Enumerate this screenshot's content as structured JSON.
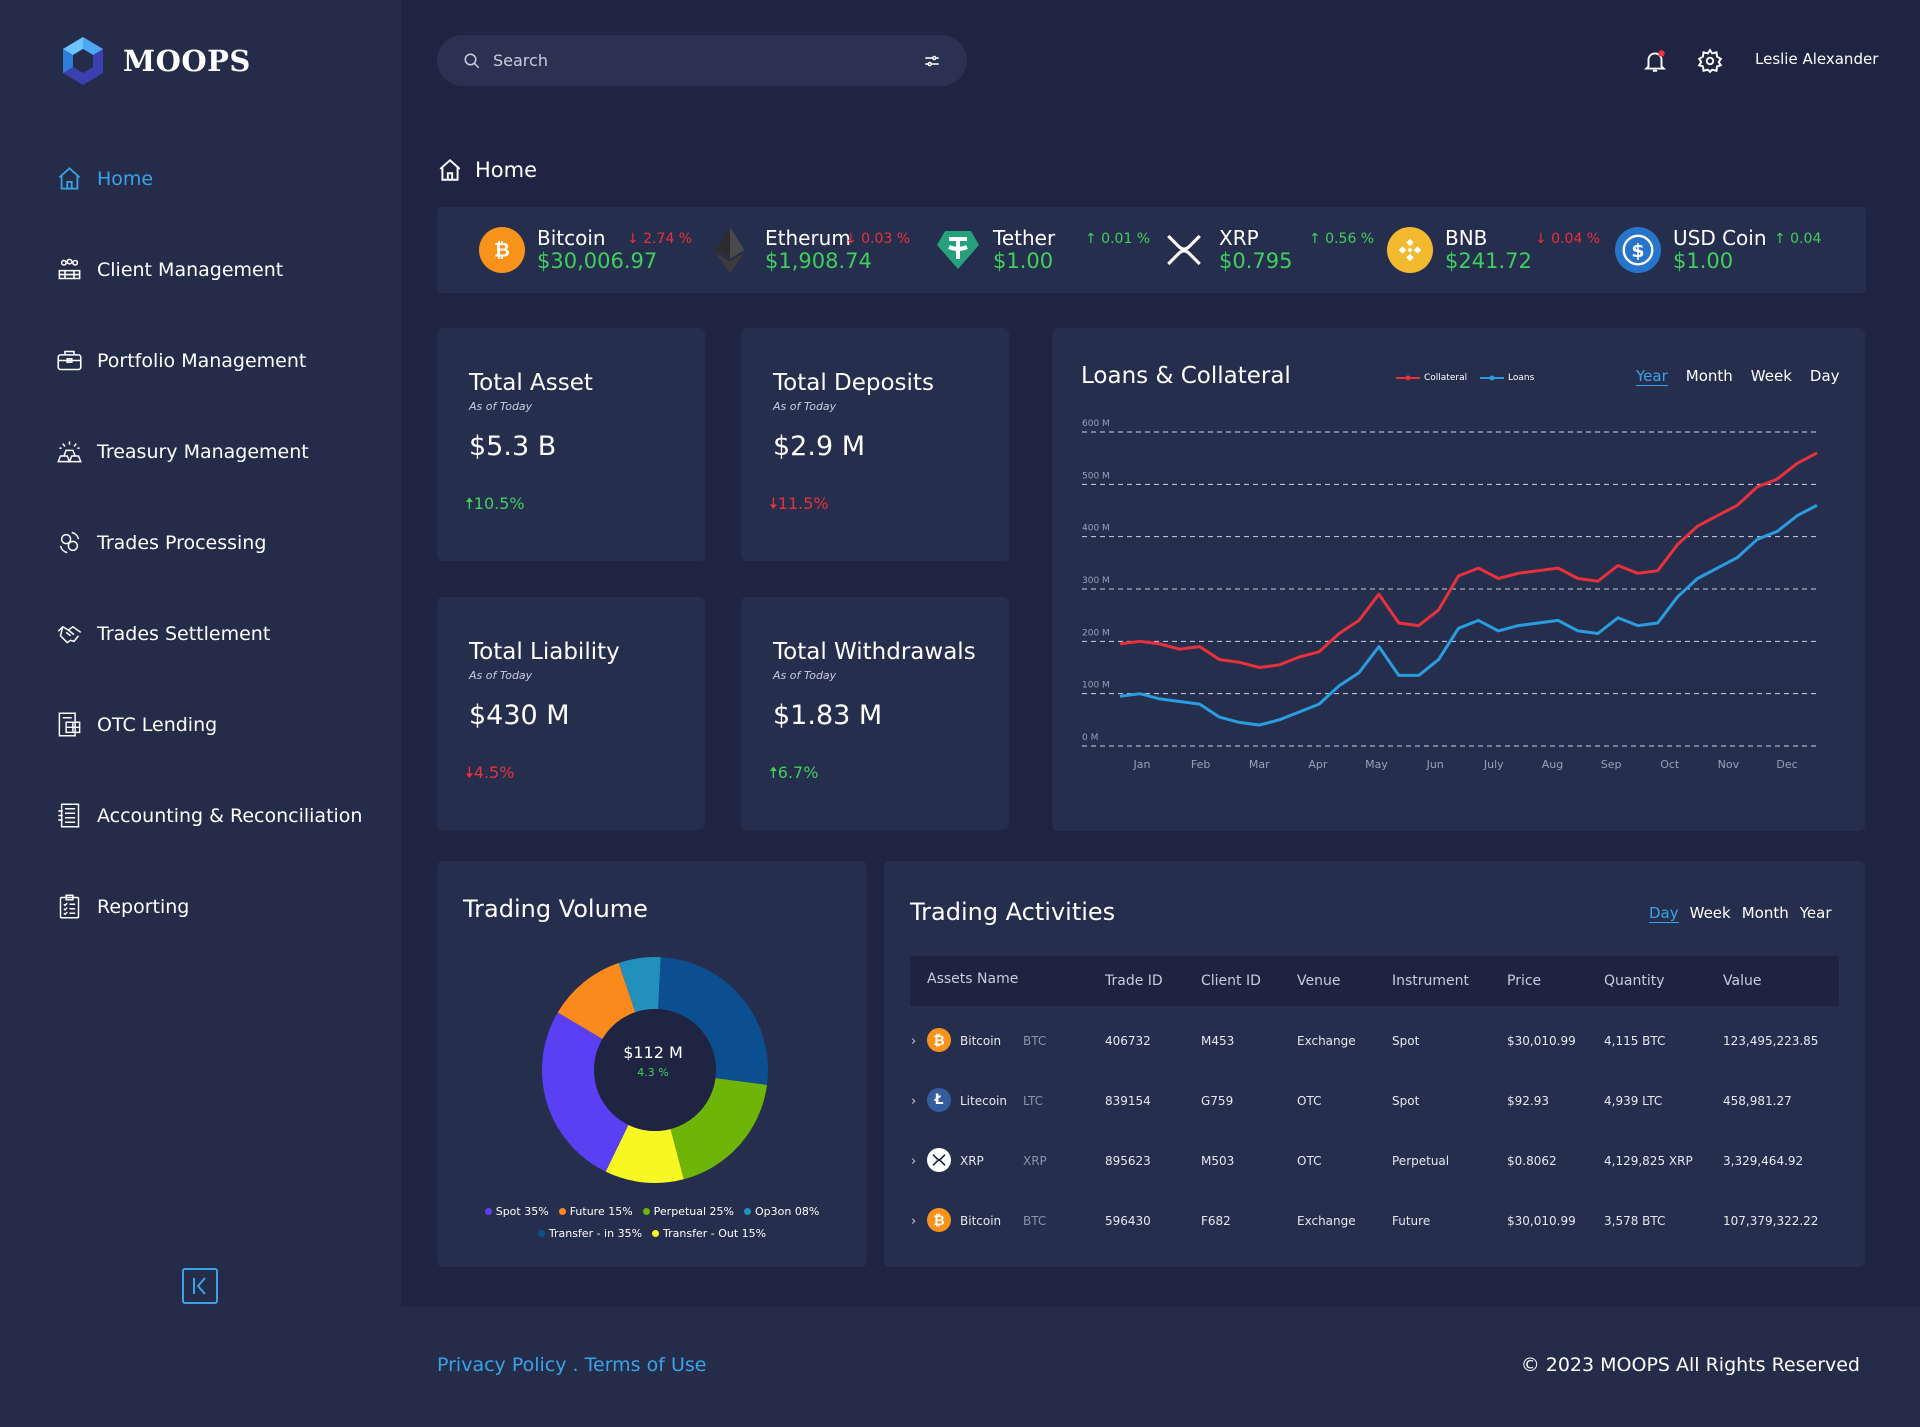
{
  "app": {
    "name": "MOOPS"
  },
  "nav": [
    {
      "label": "Home",
      "icon": "home-icon",
      "active": true
    },
    {
      "label": "Client Management",
      "icon": "clients-icon"
    },
    {
      "label": "Portfolio Management",
      "icon": "briefcase-icon"
    },
    {
      "label": "Treasury Management",
      "icon": "gold-bars-icon"
    },
    {
      "label": "Trades Processing",
      "icon": "coin-exchange-icon"
    },
    {
      "label": "Trades Settlement",
      "icon": "handshake-icon"
    },
    {
      "label": "OTC Lending",
      "icon": "lending-icon"
    },
    {
      "label": "Accounting & Reconciliation",
      "icon": "ledger-icon"
    },
    {
      "label": "Reporting",
      "icon": "clipboard-icon"
    }
  ],
  "header": {
    "search_placeholder": "Search",
    "user": "Leslie Alexander"
  },
  "breadcrumb": {
    "label": "Home"
  },
  "ticker": [
    {
      "name": "Bitcoin",
      "price": "$30,006.97",
      "change": "↓ 2.74 %",
      "dir": "down",
      "icon": "bitcoin-icon",
      "color": "#f7931a"
    },
    {
      "name": "Etherum",
      "price": "$1,908.74",
      "change": "↓ 0.03 %",
      "dir": "down",
      "icon": "ethereum-icon",
      "color": "#3c3c3d"
    },
    {
      "name": "Tether",
      "price": "$1.00",
      "change": "↑ 0.01 %",
      "dir": "up",
      "icon": "tether-icon",
      "color": "#26a17b"
    },
    {
      "name": "XRP",
      "price": "$0.795",
      "change": "↑ 0.56 %",
      "dir": "up",
      "icon": "xrp-icon",
      "color": "#ffffff"
    },
    {
      "name": "BNB",
      "price": "$241.72",
      "change": "↓ 0.04 %",
      "dir": "down",
      "icon": "bnb-icon",
      "color": "#f3ba2f"
    },
    {
      "name": "USD Coin",
      "price": "$1.00",
      "change": "↑ 0.04",
      "dir": "up",
      "icon": "usdc-icon",
      "color": "#2775ca"
    }
  ],
  "stats": [
    {
      "title": "Total Asset",
      "sub": "As of Today",
      "value": "$5.3 B",
      "change": "10.5%",
      "dir": "up"
    },
    {
      "title": "Total Deposits",
      "sub": "As of Today",
      "value": "$2.9 M",
      "change": "11.5%",
      "dir": "down"
    },
    {
      "title": "Total Liability",
      "sub": "As of Today",
      "value": "$430 M",
      "change": "4.5%",
      "dir": "down"
    },
    {
      "title": "Total Withdrawals",
      "sub": "As of Today",
      "value": "$1.83 M",
      "change": "6.7%",
      "dir": "up"
    }
  ],
  "loans": {
    "title": "Loans & Collateral",
    "tabs": [
      "Year",
      "Month",
      "Week",
      "Day"
    ],
    "selected": "Year"
  },
  "chart_data": [
    {
      "type": "line",
      "title": "Loans & Collateral",
      "legend": [
        "Collateral",
        "Loans"
      ],
      "legend_position": "top",
      "grid": true,
      "yticks": [
        "0 M",
        "100 M",
        "200 M",
        "300 M",
        "400 M",
        "500 M",
        "600 M"
      ],
      "ylim": [
        0,
        600
      ],
      "xticks": [
        "Jan",
        "Feb",
        "Mar",
        "Apr",
        "May",
        "Jun",
        "July",
        "Aug",
        "Sep",
        "Oct",
        "Nov",
        "Dec"
      ],
      "series": [
        {
          "name": "Collateral",
          "color": "#e8313b",
          "values": [
            195,
            200,
            195,
            185,
            190,
            165,
            160,
            150,
            155,
            170,
            180,
            215,
            240,
            290,
            235,
            230,
            260,
            325,
            340,
            320,
            330,
            335,
            340,
            320,
            315,
            345,
            330,
            335,
            385,
            420,
            440,
            460,
            495,
            510,
            540,
            560
          ]
        },
        {
          "name": "Loans",
          "color": "#2a9de0",
          "values": [
            95,
            100,
            90,
            85,
            80,
            55,
            45,
            40,
            50,
            65,
            80,
            115,
            140,
            190,
            135,
            135,
            165,
            225,
            240,
            220,
            230,
            235,
            240,
            220,
            215,
            245,
            230,
            235,
            285,
            320,
            340,
            360,
            395,
            410,
            440,
            460
          ]
        }
      ]
    },
    {
      "type": "pie",
      "title": "Trading Volume",
      "center_value": "$112 M",
      "center_change": "4.3 %",
      "categories": [
        "Spot",
        "Future",
        "Perpetual",
        "Option",
        "Transfer - in",
        "Transfer - Out"
      ],
      "values": [
        35,
        15,
        25,
        8,
        35,
        15
      ],
      "colors": [
        "#5b3ff2",
        "#fb8a1d",
        "#6eb508",
        "#2190bd",
        "#0b4f91",
        "#f7f823"
      ]
    }
  ],
  "volume": {
    "title": "Trading Volume",
    "legend_row1": [
      "Spot 35%",
      "Future 15%",
      "Perpetual 25%",
      "Op3on 08%"
    ],
    "legend_row2": [
      "Transfer - in 35%",
      "Transfer - Out 15%"
    ]
  },
  "activities": {
    "title": "Trading Activities",
    "tabs": [
      "Day",
      "Week",
      "Month",
      "Year"
    ],
    "selected": "Day",
    "columns": [
      "Assets Name",
      "Trade ID",
      "Client ID",
      "Venue",
      "Instrument",
      "Price",
      "Quantity",
      "Value"
    ],
    "rows": [
      {
        "asset": "Bitcoin",
        "ticker": "BTC",
        "icon": "bitcoin-icon",
        "trade_id": "406732",
        "client_id": "M453",
        "venue": "Exchange",
        "instrument": "Spot",
        "price": "$30,010.99",
        "quantity": "4,115 BTC",
        "value": "123,495,223.85"
      },
      {
        "asset": "Litecoin",
        "ticker": "LTC",
        "icon": "litecoin-icon",
        "trade_id": "839154",
        "client_id": "G759",
        "venue": "OTC",
        "instrument": "Spot",
        "price": "$92.93",
        "quantity": "4,939 LTC",
        "value": "458,981.27"
      },
      {
        "asset": "XRP",
        "ticker": "XRP",
        "icon": "xrp-icon",
        "trade_id": "895623",
        "client_id": "M503",
        "venue": "OTC",
        "instrument": "Perpetual",
        "price": "$0.8062",
        "quantity": "4,129,825 XRP",
        "value": "3,329,464.92"
      },
      {
        "asset": "Bitcoin",
        "ticker": "BTC",
        "icon": "bitcoin-icon",
        "trade_id": "596430",
        "client_id": "F682",
        "venue": "Exchange",
        "instrument": "Future",
        "price": "$30,010.99",
        "quantity": "3,578 BTC",
        "value": "107,379,322.22"
      }
    ]
  },
  "footer": {
    "privacy": "Privacy Policy",
    "terms": "Terms of Use",
    "copyright": "© 2023 MOOPS All Rights Reserved"
  },
  "colors": {
    "accent": "#3aa3e8",
    "positive": "#3fcf5e",
    "negative": "#e8313b",
    "background": "#1e2442",
    "panel": "#262e4d"
  }
}
